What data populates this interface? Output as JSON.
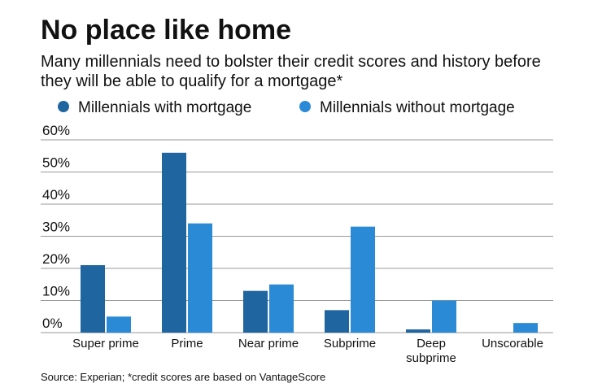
{
  "chart_data": {
    "type": "bar",
    "title": "No place like home",
    "subtitle": "Many millennials need to bolster their credit scores and history before they will be able to qualify for a mortgage*",
    "source": "Source: Experian; *credit scores are based on VantageScore",
    "categories": [
      "Super prime",
      "Prime",
      "Near prime",
      "Subprime",
      "Deep subprime",
      "Unscorable"
    ],
    "series": [
      {
        "name": "Millennials with mortgage",
        "color": "#1f65a0",
        "values": [
          21,
          56,
          13,
          7,
          1,
          0
        ]
      },
      {
        "name": "Millennials without mortgage",
        "color": "#2a8ad6",
        "values": [
          5,
          34,
          15,
          33,
          10,
          3
        ]
      }
    ],
    "ylim": [
      0,
      60
    ],
    "yticks": [
      {
        "value": 0,
        "label": "0%"
      },
      {
        "value": 10,
        "label": "10%"
      },
      {
        "value": 20,
        "label": "20%"
      },
      {
        "value": 30,
        "label": "30%"
      },
      {
        "value": 40,
        "label": "40%"
      },
      {
        "value": 50,
        "label": "50%"
      },
      {
        "value": 60,
        "label": "60%"
      }
    ],
    "grid": true
  }
}
